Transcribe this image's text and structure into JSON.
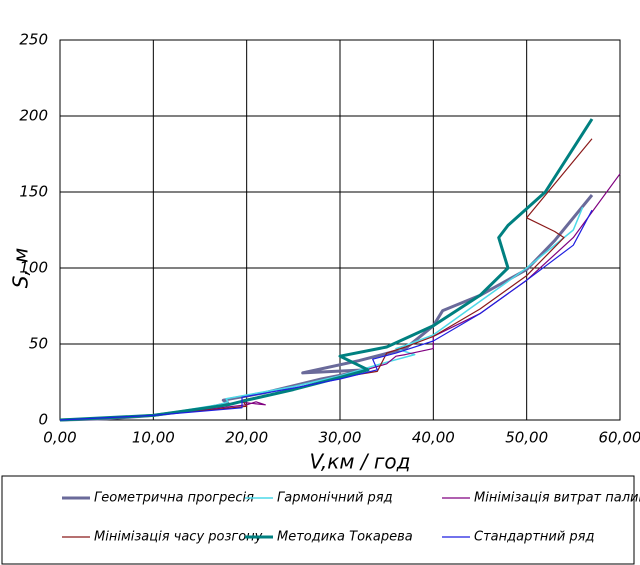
{
  "chart_data": {
    "type": "line",
    "x_label": "V,км / год",
    "y_label": "S, м",
    "xlim": [
      0,
      60
    ],
    "ylim": [
      0,
      250
    ],
    "xticks": [
      {
        "value": 0,
        "label": "0,00"
      },
      {
        "value": 10,
        "label": "10,00"
      },
      {
        "value": 20,
        "label": "20,00"
      },
      {
        "value": 30,
        "label": "30,00"
      },
      {
        "value": 40,
        "label": "40,00"
      },
      {
        "value": 50,
        "label": "50,00"
      },
      {
        "value": 60,
        "label": "60,00"
      }
    ],
    "yticks": [
      0,
      50,
      100,
      150,
      200,
      250
    ],
    "grid": true,
    "series": [
      {
        "name": "Геометрична прогресія",
        "color": "#6a6a9a",
        "width": 3,
        "x": [
          0,
          5,
          10,
          15,
          18,
          17.5,
          22,
          28,
          33,
          26,
          32,
          37,
          40,
          41,
          45,
          50,
          53,
          57
        ],
        "values": [
          0,
          0.8,
          3,
          7,
          11,
          13,
          18,
          27,
          33,
          31,
          39,
          47,
          62,
          72,
          82,
          99,
          118,
          148
        ]
      },
      {
        "name": "Гармонічний ряд",
        "color": "#4dd9e8",
        "width": 1.5,
        "x": [
          0,
          10,
          17,
          18,
          17.8,
          25,
          30,
          35,
          38,
          36,
          37,
          40,
          45,
          50,
          55,
          56
        ],
        "values": [
          0,
          3,
          10,
          12,
          14,
          22,
          29,
          38,
          43,
          47,
          49,
          56,
          78,
          100,
          125,
          140
        ]
      },
      {
        "name": "Мінімізація витрат палива",
        "color": "#800080",
        "width": 1.2,
        "x": [
          0,
          10,
          20,
          21,
          22,
          19,
          25,
          30,
          35,
          36,
          37,
          40,
          40,
          45,
          50,
          55,
          60
        ],
        "values": [
          0,
          3,
          10,
          12,
          10,
          12,
          20,
          28,
          37,
          42,
          43,
          47,
          55,
          70,
          92,
          120,
          162
        ]
      },
      {
        "name": "Мінімізація часу розгону",
        "color": "#8b1a1a",
        "width": 1.2,
        "x": [
          0,
          10,
          20,
          19.5,
          25,
          30,
          34,
          35,
          37,
          40,
          45,
          50,
          54,
          53,
          50,
          57
        ],
        "values": [
          0,
          3,
          9,
          13,
          20,
          28,
          32,
          44,
          48,
          55,
          73,
          95,
          120,
          124,
          133,
          185
        ]
      },
      {
        "name": "Методика Токарева",
        "color": "#008080",
        "width": 3,
        "x": [
          0,
          10,
          18,
          20,
          25,
          30,
          33,
          30,
          35,
          40,
          45,
          48,
          47,
          48,
          52,
          57
        ],
        "values": [
          0,
          3,
          10,
          13,
          20,
          28,
          33,
          42,
          48,
          62,
          82,
          100,
          120,
          128,
          150,
          198
        ]
      },
      {
        "name": "Стандартний ряд",
        "color": "#1f1fe0",
        "width": 1.2,
        "x": [
          0,
          10,
          19.5,
          19.5,
          25,
          30,
          34,
          33.5,
          36,
          40,
          45,
          50,
          55,
          57
        ],
        "values": [
          0,
          3,
          8,
          15,
          21,
          27,
          33,
          40,
          44,
          52,
          70,
          92,
          115,
          138
        ]
      }
    ]
  }
}
